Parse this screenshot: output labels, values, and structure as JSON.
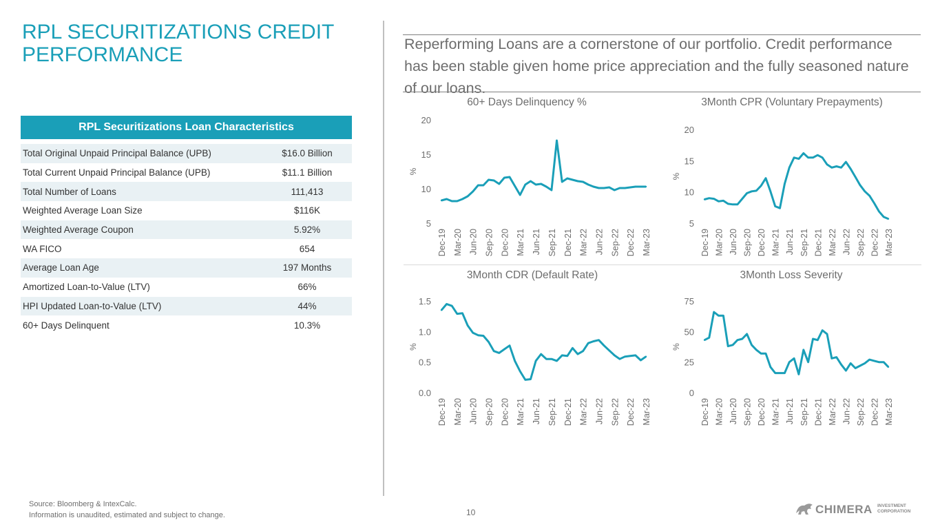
{
  "page": {
    "title": "RPL SECURITIZATIONS CREDIT PERFORMANCE",
    "intro": "Reperforming Loans are a cornerstone of our portfolio. Credit performance has been stable given home price appreciation and the fully seasoned nature of our loans.",
    "page_number": "10"
  },
  "table": {
    "heading": "RPL Securitizations Loan Characteristics",
    "rows": [
      {
        "label": "Total Original Unpaid Principal Balance (UPB)",
        "value": "$16.0 Billion"
      },
      {
        "label": "Total Current Unpaid Principal Balance (UPB)",
        "value": "$11.1 Billion"
      },
      {
        "label": "Total Number of Loans",
        "value": "111,413"
      },
      {
        "label": "Weighted Average Loan Size",
        "value": "$116K"
      },
      {
        "label": "Weighted Average Coupon",
        "value": "5.92%"
      },
      {
        "label": "WA FICO",
        "value": "654"
      },
      {
        "label": "Average Loan Age",
        "value": "197 Months"
      },
      {
        "label": "Amortized Loan-to-Value (LTV)",
        "value": "66%"
      },
      {
        "label": "HPI Updated Loan-to-Value (LTV)",
        "value": "44%"
      },
      {
        "label": "60+ Days Delinquent",
        "value": "10.3%"
      }
    ]
  },
  "footer": {
    "source": "Source: Bloomberg & IntexCalc.",
    "disclaimer": "Information is unaudited, estimated and subject to change."
  },
  "logo": {
    "name": "CHIMERA",
    "sub_line1": "INVESTMENT",
    "sub_line2": "CORPORATION"
  },
  "colors": {
    "accent": "#1a9fb8",
    "line": "#1a9fb8"
  },
  "chart_data": [
    {
      "type": "line",
      "title": "60+ Days Delinquency %",
      "ylabel": "%",
      "ylim": [
        5,
        20
      ],
      "yticks": [
        5,
        10,
        15,
        20
      ],
      "xtick_labels": [
        "Dec-19",
        "Mar-20",
        "Jun-20",
        "Sep-20",
        "Dec-20",
        "Mar-21",
        "Jun-21",
        "Sep-21",
        "Dec-21",
        "Mar-22",
        "Jun-22",
        "Sep-22",
        "Dec-22",
        "Mar-23"
      ],
      "values": [
        8.3,
        8.5,
        8.2,
        8.2,
        8.5,
        8.9,
        9.6,
        10.5,
        10.5,
        11.3,
        11.2,
        10.7,
        11.6,
        11.7,
        10.4,
        9.1,
        10.6,
        11.1,
        10.6,
        10.7,
        10.3,
        9.8,
        17.0,
        11.0,
        11.5,
        11.3,
        11.1,
        11.0,
        10.6,
        10.3,
        10.1,
        10.1,
        10.2,
        9.8,
        10.1,
        10.1,
        10.2,
        10.3,
        10.3,
        10.3
      ]
    },
    {
      "type": "line",
      "title": "3Month CPR (Voluntary Prepayments)",
      "ylabel": "%",
      "ylim": [
        5,
        20
      ],
      "yticks": [
        5,
        10,
        15,
        20
      ],
      "xtick_labels": [
        "Dec-19",
        "Mar-20",
        "Jun-20",
        "Sep-20",
        "Dec-20",
        "Mar-21",
        "Jun-21",
        "Sep-21",
        "Dec-21",
        "Mar-22",
        "Jun-22",
        "Sep-22",
        "Dec-22",
        "Mar-23"
      ],
      "values": [
        8.8,
        9.0,
        8.9,
        8.5,
        8.6,
        8.1,
        8.0,
        8.0,
        8.9,
        9.8,
        10.1,
        10.2,
        11.0,
        12.2,
        10.1,
        7.7,
        7.4,
        11.3,
        13.9,
        15.5,
        15.3,
        16.2,
        15.5,
        15.5,
        15.9,
        15.5,
        14.4,
        13.9,
        14.1,
        13.9,
        14.8,
        13.7,
        12.4,
        11.1,
        10.1,
        9.4,
        8.2,
        6.9,
        6.0,
        5.7
      ]
    },
    {
      "type": "line",
      "title": "3Month CDR (Default Rate)",
      "ylabel": "%",
      "ylim": [
        0,
        1.5
      ],
      "yticks": [
        0.0,
        0.5,
        1.0,
        1.5
      ],
      "ytick_labels": [
        "0.0",
        "0.5",
        "1.0",
        "1.5"
      ],
      "xtick_labels": [
        "Dec-19",
        "Mar-20",
        "Jun-20",
        "Sep-20",
        "Dec-20",
        "Mar-21",
        "Jun-21",
        "Sep-21",
        "Dec-21",
        "Mar-22",
        "Jun-22",
        "Sep-22",
        "Dec-22",
        "Mar-23"
      ],
      "values": [
        1.35,
        1.45,
        1.42,
        1.29,
        1.3,
        1.1,
        0.98,
        0.94,
        0.93,
        0.83,
        0.68,
        0.65,
        0.71,
        0.77,
        0.52,
        0.35,
        0.21,
        0.22,
        0.52,
        0.63,
        0.55,
        0.55,
        0.52,
        0.61,
        0.6,
        0.73,
        0.63,
        0.68,
        0.81,
        0.84,
        0.86,
        0.77,
        0.69,
        0.61,
        0.55,
        0.59,
        0.6,
        0.61,
        0.53,
        0.59
      ]
    },
    {
      "type": "line",
      "title": "3Month Loss Severity",
      "ylabel": "%",
      "ylim": [
        0,
        75
      ],
      "yticks": [
        0,
        25,
        50,
        75
      ],
      "xtick_labels": [
        "Dec-19",
        "Mar-20",
        "Jun-20",
        "Sep-20",
        "Dec-20",
        "Mar-21",
        "Jun-21",
        "Sep-21",
        "Dec-21",
        "Mar-22",
        "Jun-22",
        "Sep-22",
        "Dec-22",
        "Mar-23"
      ],
      "values": [
        43,
        45,
        66,
        63,
        63,
        38,
        39,
        43,
        44,
        48,
        39,
        35,
        32,
        32,
        21,
        16,
        16,
        16,
        25,
        28,
        15,
        35,
        25,
        44,
        43,
        51,
        48,
        28,
        29,
        23,
        18,
        24,
        20,
        22,
        24,
        27,
        26,
        25,
        25,
        21
      ]
    }
  ]
}
